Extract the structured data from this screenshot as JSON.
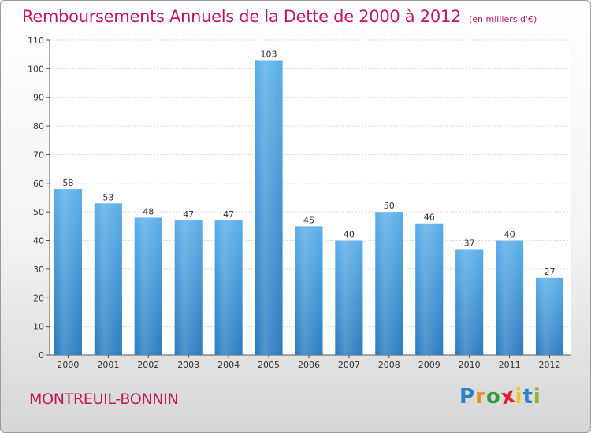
{
  "title": "Remboursements Annuels de la Dette de 2000 à 2012",
  "subtitle": "(en milliers d'€)",
  "commune": "MONTREUIL-BONNIN",
  "brand": {
    "letters": [
      "P",
      "r",
      "o",
      "x",
      "i",
      "t",
      "i"
    ],
    "colors": [
      "#2e7fc2",
      "#f08a1c",
      "#2e9e3c",
      "#d8232a",
      "#f0c419",
      "#2e7fc2",
      "#8ab833"
    ]
  },
  "chart_data": {
    "type": "bar",
    "categories": [
      "2000",
      "2001",
      "2002",
      "2003",
      "2004",
      "2005",
      "2006",
      "2007",
      "2008",
      "2009",
      "2010",
      "2011",
      "2012"
    ],
    "values": [
      58,
      53,
      48,
      47,
      47,
      103,
      45,
      40,
      50,
      46,
      37,
      40,
      27
    ],
    "title": "Remboursements Annuels de la Dette de 2000 à 2012",
    "subtitle": "(en milliers d'€)",
    "ylim": [
      0,
      110
    ],
    "yticks": [
      0,
      10,
      20,
      30,
      40,
      50,
      60,
      70,
      80,
      90,
      100,
      110
    ],
    "grid": true,
    "bar_color": "#4a9fe0",
    "bar_color_dark": "#2a7bbf"
  }
}
